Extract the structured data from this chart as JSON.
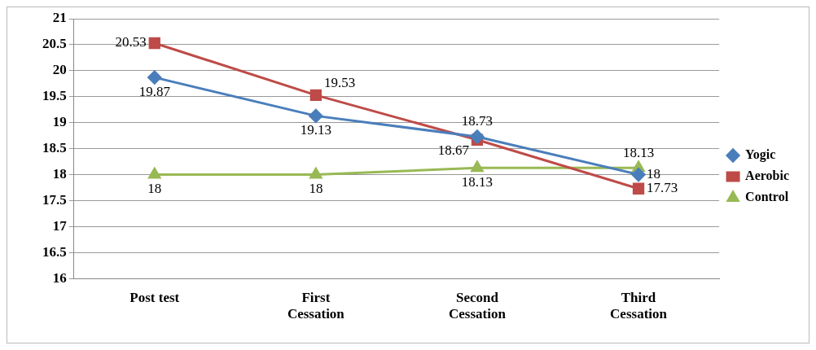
{
  "chart_data": {
    "type": "line",
    "categories": [
      "Post test",
      "First Cessation",
      "Second Cessation",
      "Third Cessation"
    ],
    "series": [
      {
        "name": "Yogic",
        "color": "#4a7ebb",
        "marker": "diamond",
        "values": [
          19.87,
          19.13,
          18.73,
          18
        ]
      },
      {
        "name": "Aerobic",
        "color": "#be4b48",
        "marker": "square",
        "values": [
          20.53,
          19.53,
          18.67,
          17.73
        ]
      },
      {
        "name": "Control",
        "color": "#98b954",
        "marker": "triangle",
        "values": [
          18,
          18,
          18.13,
          18.13
        ]
      }
    ],
    "ylim": [
      16,
      21
    ],
    "yticks": [
      16,
      16.5,
      17,
      17.5,
      18,
      18.5,
      19,
      19.5,
      20,
      20.5,
      21
    ],
    "grid": "y",
    "legend": "right",
    "data_labels": true,
    "line_style": "solid"
  }
}
